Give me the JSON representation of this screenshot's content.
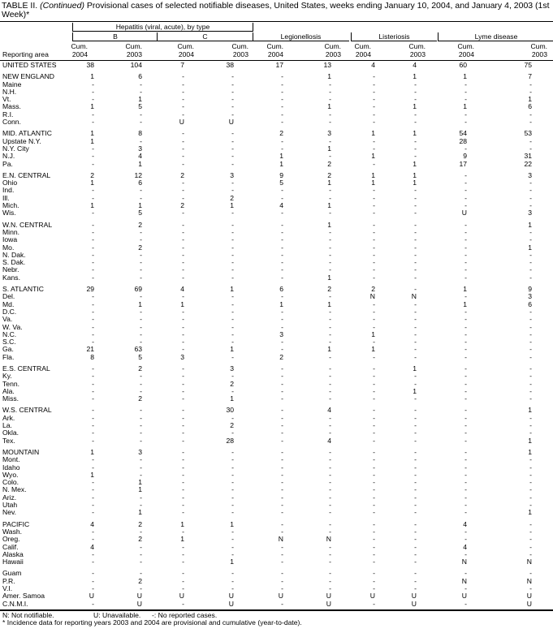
{
  "title": {
    "prefix": "TABLE II. ",
    "italic": "(Continued)",
    "text": " Provisional cases of selected notifiable diseases, United States, weeks ending January 10, 2004, and January 4, 2003 (1st Week)*"
  },
  "header": {
    "hepatitis": "Hepatitis (viral, acute), by type",
    "b": "B",
    "c": "C",
    "legionellosis": "Legionellosis",
    "listeriosis": "Listeriosis",
    "lyme": "Lyme disease",
    "reporting_area": "Reporting area",
    "cols": [
      {
        "cum": "Cum.",
        "year": "2004"
      },
      {
        "cum": "Cum.",
        "year": "2003"
      },
      {
        "cum": "Cum.",
        "year": "2004"
      },
      {
        "cum": "Cum.",
        "year": "2003"
      },
      {
        "cum": "Cum.",
        "year": "2004"
      },
      {
        "cum": "Cum.",
        "year": "2003"
      },
      {
        "cum": "Cum.",
        "year": "2004"
      },
      {
        "cum": "Cum.",
        "year": "2003"
      },
      {
        "cum": "Cum.",
        "year": "2004"
      },
      {
        "cum": "Cum.",
        "year": "2003"
      }
    ]
  },
  "groups": [
    [
      [
        "UNITED STATES",
        "38",
        "104",
        "7",
        "38",
        "17",
        "13",
        "4",
        "4",
        "60",
        "75"
      ]
    ],
    [
      [
        "NEW ENGLAND",
        "1",
        "6",
        "-",
        "-",
        "-",
        "1",
        "-",
        "1",
        "1",
        "7"
      ],
      [
        "Maine",
        "-",
        "-",
        "-",
        "-",
        "-",
        "-",
        "-",
        "-",
        "-",
        "-"
      ],
      [
        "N.H.",
        "-",
        "-",
        "-",
        "-",
        "-",
        "-",
        "-",
        "-",
        "-",
        "-"
      ],
      [
        "Vt.",
        "-",
        "1",
        "-",
        "-",
        "-",
        "-",
        "-",
        "-",
        "-",
        "1"
      ],
      [
        "Mass.",
        "1",
        "5",
        "-",
        "-",
        "-",
        "1",
        "-",
        "1",
        "1",
        "6"
      ],
      [
        "R.I.",
        "-",
        "-",
        "-",
        "-",
        "-",
        "-",
        "-",
        "-",
        "-",
        "-"
      ],
      [
        "Conn.",
        "-",
        "-",
        "U",
        "U",
        "-",
        "-",
        "-",
        "-",
        "-",
        "-"
      ]
    ],
    [
      [
        "MID. ATLANTIC",
        "1",
        "8",
        "-",
        "-",
        "2",
        "3",
        "1",
        "1",
        "54",
        "53"
      ],
      [
        "Upstate N.Y.",
        "1",
        "-",
        "-",
        "-",
        "-",
        "-",
        "-",
        "-",
        "28",
        "-"
      ],
      [
        "N.Y. City",
        "-",
        "3",
        "-",
        "-",
        "-",
        "1",
        "-",
        "-",
        "-",
        "-"
      ],
      [
        "N.J.",
        "-",
        "4",
        "-",
        "-",
        "1",
        "-",
        "1",
        "-",
        "9",
        "31"
      ],
      [
        "Pa.",
        "-",
        "1",
        "-",
        "-",
        "1",
        "2",
        "-",
        "1",
        "17",
        "22"
      ]
    ],
    [
      [
        "E.N. CENTRAL",
        "2",
        "12",
        "2",
        "3",
        "9",
        "2",
        "1",
        "1",
        "-",
        "3"
      ],
      [
        "Ohio",
        "1",
        "6",
        "-",
        "-",
        "5",
        "1",
        "1",
        "1",
        "-",
        "-"
      ],
      [
        "Ind.",
        "-",
        "-",
        "-",
        "-",
        "-",
        "-",
        "-",
        "-",
        "-",
        "-"
      ],
      [
        "Ill.",
        "-",
        "-",
        "-",
        "2",
        "-",
        "-",
        "-",
        "-",
        "-",
        "-"
      ],
      [
        "Mich.",
        "1",
        "1",
        "2",
        "1",
        "4",
        "1",
        "-",
        "-",
        "-",
        "-"
      ],
      [
        "Wis.",
        "-",
        "5",
        "-",
        "-",
        "-",
        "-",
        "-",
        "-",
        "U",
        "3"
      ]
    ],
    [
      [
        "W.N. CENTRAL",
        "-",
        "2",
        "-",
        "-",
        "-",
        "1",
        "-",
        "-",
        "-",
        "1"
      ],
      [
        "Minn.",
        "-",
        "-",
        "-",
        "-",
        "-",
        "-",
        "-",
        "-",
        "-",
        "-"
      ],
      [
        "Iowa",
        "-",
        "-",
        "-",
        "-",
        "-",
        "-",
        "-",
        "-",
        "-",
        "-"
      ],
      [
        "Mo.",
        "-",
        "2",
        "-",
        "-",
        "-",
        "-",
        "-",
        "-",
        "-",
        "1"
      ],
      [
        "N. Dak.",
        "-",
        "-",
        "-",
        "-",
        "-",
        "-",
        "-",
        "-",
        "-",
        "-"
      ],
      [
        "S. Dak.",
        "-",
        "-",
        "-",
        "-",
        "-",
        "-",
        "-",
        "-",
        "-",
        "-"
      ],
      [
        "Nebr.",
        "-",
        "-",
        "-",
        "-",
        "-",
        "-",
        "-",
        "-",
        "-",
        "-"
      ],
      [
        "Kans.",
        "-",
        "-",
        "-",
        "-",
        "-",
        "1",
        "-",
        "-",
        "-",
        "-"
      ]
    ],
    [
      [
        "S. ATLANTIC",
        "29",
        "69",
        "4",
        "1",
        "6",
        "2",
        "2",
        "-",
        "1",
        "9"
      ],
      [
        "Del.",
        "-",
        "-",
        "-",
        "-",
        "-",
        "-",
        "N",
        "N",
        "-",
        "3"
      ],
      [
        "Md.",
        "-",
        "1",
        "1",
        "-",
        "1",
        "1",
        "-",
        "-",
        "1",
        "6"
      ],
      [
        "D.C.",
        "-",
        "-",
        "-",
        "-",
        "-",
        "-",
        "-",
        "-",
        "-",
        "-"
      ],
      [
        "Va.",
        "-",
        "-",
        "-",
        "-",
        "-",
        "-",
        "-",
        "-",
        "-",
        "-"
      ],
      [
        "W. Va.",
        "-",
        "-",
        "-",
        "-",
        "-",
        "-",
        "-",
        "-",
        "-",
        "-"
      ],
      [
        "N.C.",
        "-",
        "-",
        "-",
        "-",
        "3",
        "-",
        "1",
        "-",
        "-",
        "-"
      ],
      [
        "S.C.",
        "-",
        "-",
        "-",
        "-",
        "-",
        "-",
        "-",
        "-",
        "-",
        "-"
      ],
      [
        "Ga.",
        "21",
        "63",
        "-",
        "1",
        "-",
        "1",
        "1",
        "-",
        "-",
        "-"
      ],
      [
        "Fla.",
        "8",
        "5",
        "3",
        "-",
        "2",
        "-",
        "-",
        "-",
        "-",
        "-"
      ]
    ],
    [
      [
        "E.S. CENTRAL",
        "-",
        "2",
        "-",
        "3",
        "-",
        "-",
        "-",
        "1",
        "-",
        "-"
      ],
      [
        "Ky.",
        "-",
        "-",
        "-",
        "-",
        "-",
        "-",
        "-",
        "-",
        "-",
        "-"
      ],
      [
        "Tenn.",
        "-",
        "-",
        "-",
        "2",
        "-",
        "-",
        "-",
        "-",
        "-",
        "-"
      ],
      [
        "Ala.",
        "-",
        "-",
        "-",
        "-",
        "-",
        "-",
        "-",
        "1",
        "-",
        "-"
      ],
      [
        "Miss.",
        "-",
        "2",
        "-",
        "1",
        "-",
        "-",
        "-",
        "-",
        "-",
        "-"
      ]
    ],
    [
      [
        "W.S. CENTRAL",
        "-",
        "-",
        "-",
        "30",
        "-",
        "4",
        "-",
        "-",
        "-",
        "1"
      ],
      [
        "Ark.",
        "-",
        "-",
        "-",
        "-",
        "-",
        "-",
        "-",
        "-",
        "-",
        "-"
      ],
      [
        "La.",
        "-",
        "-",
        "-",
        "2",
        "-",
        "-",
        "-",
        "-",
        "-",
        "-"
      ],
      [
        "Okla.",
        "-",
        "-",
        "-",
        "-",
        "-",
        "-",
        "-",
        "-",
        "-",
        "-"
      ],
      [
        "Tex.",
        "-",
        "-",
        "-",
        "28",
        "-",
        "4",
        "-",
        "-",
        "-",
        "1"
      ]
    ],
    [
      [
        "MOUNTAIN",
        "1",
        "3",
        "-",
        "-",
        "-",
        "-",
        "-",
        "-",
        "-",
        "1"
      ],
      [
        "Mont.",
        "-",
        "-",
        "-",
        "-",
        "-",
        "-",
        "-",
        "-",
        "-",
        "-"
      ],
      [
        "Idaho",
        "-",
        "-",
        "-",
        "-",
        "-",
        "-",
        "-",
        "-",
        "-",
        "-"
      ],
      [
        "Wyo.",
        "1",
        "-",
        "-",
        "-",
        "-",
        "-",
        "-",
        "-",
        "-",
        "-"
      ],
      [
        "Colo.",
        "-",
        "1",
        "-",
        "-",
        "-",
        "-",
        "-",
        "-",
        "-",
        "-"
      ],
      [
        "N. Mex.",
        "-",
        "1",
        "-",
        "-",
        "-",
        "-",
        "-",
        "-",
        "-",
        "-"
      ],
      [
        "Ariz.",
        "-",
        "-",
        "-",
        "-",
        "-",
        "-",
        "-",
        "-",
        "-",
        "-"
      ],
      [
        "Utah",
        "-",
        "-",
        "-",
        "-",
        "-",
        "-",
        "-",
        "-",
        "-",
        "-"
      ],
      [
        "Nev.",
        "-",
        "1",
        "-",
        "-",
        "-",
        "-",
        "-",
        "-",
        "-",
        "1"
      ]
    ],
    [
      [
        "PACIFIC",
        "4",
        "2",
        "1",
        "1",
        "-",
        "-",
        "-",
        "-",
        "4",
        "-"
      ],
      [
        "Wash.",
        "-",
        "-",
        "-",
        "-",
        "-",
        "-",
        "-",
        "-",
        "-",
        "-"
      ],
      [
        "Oreg.",
        "-",
        "2",
        "1",
        "-",
        "N",
        "N",
        "-",
        "-",
        "-",
        "-"
      ],
      [
        "Calif.",
        "4",
        "-",
        "-",
        "-",
        "-",
        "-",
        "-",
        "-",
        "4",
        "-"
      ],
      [
        "Alaska",
        "-",
        "-",
        "-",
        "-",
        "-",
        "-",
        "-",
        "-",
        "-",
        "-"
      ],
      [
        "Hawaii",
        "-",
        "-",
        "-",
        "1",
        "-",
        "-",
        "-",
        "-",
        "N",
        "N"
      ]
    ],
    [
      [
        "Guam",
        "-",
        "-",
        "-",
        "-",
        "-",
        "-",
        "-",
        "-",
        "-",
        "-"
      ],
      [
        "P.R.",
        "-",
        "2",
        "-",
        "-",
        "-",
        "-",
        "-",
        "-",
        "N",
        "N"
      ],
      [
        "V.I.",
        "-",
        "-",
        "-",
        "-",
        "-",
        "-",
        "-",
        "-",
        "-",
        "-"
      ],
      [
        "Amer. Samoa",
        "U",
        "U",
        "U",
        "U",
        "U",
        "U",
        "U",
        "U",
        "U",
        "U"
      ],
      [
        "C.N.M.I.",
        "-",
        "U",
        "-",
        "U",
        "-",
        "U",
        "-",
        "U",
        "-",
        "U"
      ]
    ]
  ],
  "footnotes": {
    "n": "N: Not notifiable.",
    "u": "U: Unavailable.",
    "dash": "-: No reported cases.",
    "star": "* Incidence data for reporting years 2003 and 2004 are provisional and cumulative (year-to-date)."
  }
}
